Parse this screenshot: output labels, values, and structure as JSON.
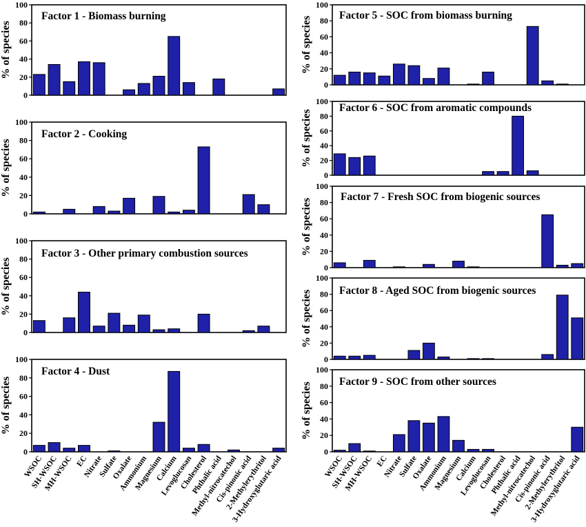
{
  "chart_data": {
    "type": "bar",
    "ylabel": "% of species",
    "ylim": [
      0,
      100
    ],
    "y_ticks": [
      "0",
      "20",
      "40",
      "60",
      "80",
      "100"
    ],
    "bar_color": "#1f21a8",
    "categories": [
      "WSOC",
      "SH-WSOC",
      "MH-WSOC",
      "EC",
      "Nitrate",
      "Sulfate",
      "Oxalate",
      "Ammonium",
      "Magnesium",
      "Calcium",
      "Levoglucosan",
      "Cholesterol",
      "Phthalic acid",
      "Methyl-nitrocatechol",
      "Cis-pinonic acid",
      "2-Methylerythritol",
      "3-Hydroxyglutaric acid"
    ],
    "panels": [
      {
        "title": "Factor 1 - Biomass burning",
        "values": [
          23,
          34,
          15,
          37,
          36,
          0,
          6,
          13,
          21,
          65,
          14,
          0,
          18,
          0,
          0,
          0,
          7
        ]
      },
      {
        "title": "Factor 2 - Cooking",
        "values": [
          2,
          0,
          5,
          0,
          8,
          3,
          17,
          0,
          19,
          2,
          4,
          73,
          0,
          0,
          21,
          10,
          0
        ]
      },
      {
        "title": "Factor 3 - Other primary combustion sources",
        "values": [
          13,
          0,
          16,
          44,
          7,
          21,
          8,
          19,
          3,
          4,
          0,
          20,
          0,
          0,
          2,
          7,
          0
        ]
      },
      {
        "title": "Factor 4 - Dust",
        "values": [
          7,
          10,
          4,
          7,
          0,
          1,
          0,
          0,
          32,
          87,
          4,
          8,
          0,
          2,
          0,
          0,
          4
        ]
      },
      {
        "title": "Factor 5 - SOC from biomass burning",
        "values": [
          12,
          16,
          15,
          11,
          26,
          24,
          8,
          21,
          0,
          1,
          16,
          0,
          0,
          73,
          5,
          1,
          0
        ]
      },
      {
        "title": "Factor 6 - SOC from aromatic compounds",
        "values": [
          29,
          24,
          26,
          0,
          0,
          0,
          0,
          0,
          0,
          0,
          5,
          5,
          80,
          6,
          0,
          0,
          0
        ]
      },
      {
        "title": "Factor 7 - Fresh SOC from biogenic sources",
        "values": [
          6,
          0,
          9,
          0,
          1,
          0,
          4,
          0,
          8,
          1,
          0,
          0,
          0,
          0,
          65,
          3,
          5
        ]
      },
      {
        "title": "Factor 8 - Aged SOC from biogenic sources",
        "values": [
          4,
          4,
          5,
          0,
          0,
          11,
          20,
          3,
          0,
          1,
          1,
          0,
          0,
          0,
          6,
          79,
          51
        ]
      },
      {
        "title": "Factor 9 - SOC from other sources",
        "values": [
          2,
          10,
          1,
          0,
          21,
          38,
          35,
          43,
          14,
          3,
          3,
          0,
          0,
          0,
          0,
          0,
          30
        ]
      }
    ]
  }
}
